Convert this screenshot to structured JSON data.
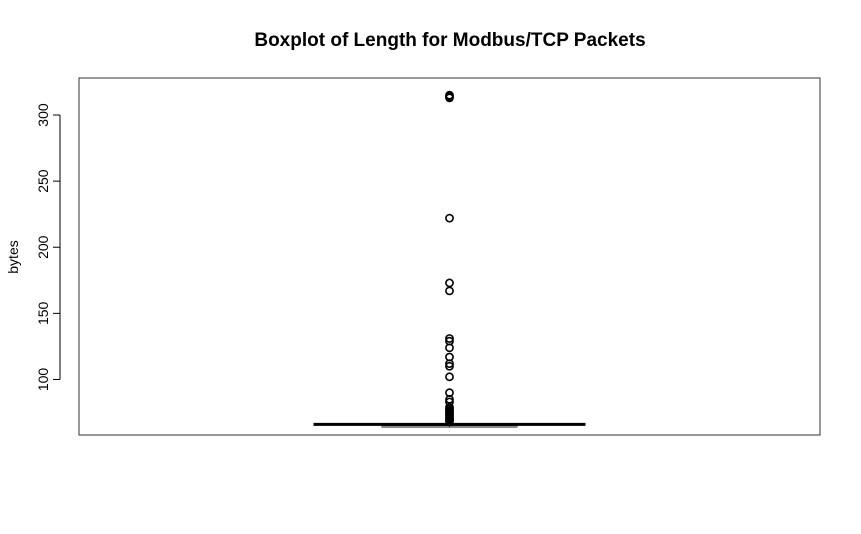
{
  "chart_data": {
    "type": "box",
    "title": "Boxplot of Length for Modbus/TCP Packets",
    "xlabel": "",
    "ylabel": "bytes",
    "ylim": [
      58,
      328
    ],
    "yticks": [
      100,
      150,
      200,
      250,
      300
    ],
    "grid": false,
    "box": {
      "min": 64,
      "q1": 65,
      "median": 66,
      "q3": 66,
      "max": 66
    },
    "outliers": [
      68,
      69,
      70,
      71,
      72,
      73,
      74,
      75,
      76,
      77,
      78,
      79,
      83,
      85,
      90,
      102,
      110,
      112,
      117,
      124,
      129,
      131,
      167,
      173,
      222,
      313,
      314,
      315
    ]
  }
}
